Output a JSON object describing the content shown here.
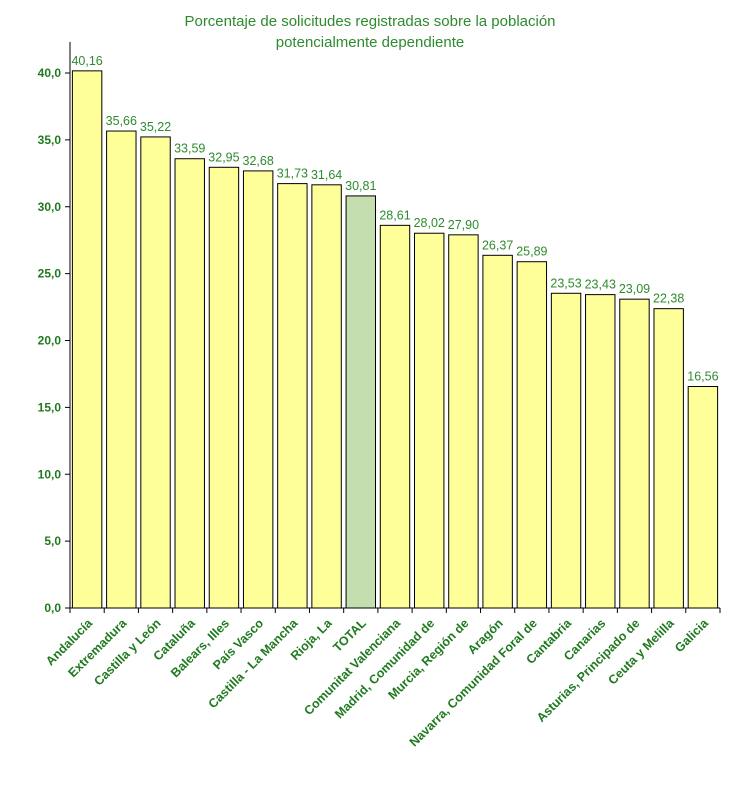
{
  "chart_data": {
    "type": "bar",
    "title_lines": [
      "Porcentaje de solicitudes registradas sobre la población",
      "potencialmente dependiente"
    ],
    "categories": [
      "Andalucía",
      "Extremadura",
      "Castilla y León",
      "Cataluña",
      "Balears, Illes",
      "País Vasco",
      "Castilla - La Mancha",
      "Rioja, La",
      "TOTAL",
      "Comunitat Valenciana",
      "Madrid, Comunidad de",
      "Murcia, Región de",
      "Aragón",
      "Navarra, Comunidad Foral de",
      "Cantabria",
      "Canarias",
      "Asturias, Principado de",
      "Ceuta y Melilla",
      "Galicia"
    ],
    "values": [
      40.16,
      35.66,
      35.22,
      33.59,
      32.95,
      32.68,
      31.73,
      31.64,
      30.81,
      28.61,
      28.02,
      27.9,
      26.37,
      25.89,
      23.53,
      23.43,
      23.09,
      22.38,
      16.56
    ],
    "value_labels": [
      "40,16",
      "35,66",
      "35,22",
      "33,59",
      "32,95",
      "32,68",
      "31,73",
      "31,64",
      "30,81",
      "28,61",
      "28,02",
      "27,90",
      "26,37",
      "25,89",
      "23,53",
      "23,43",
      "23,09",
      "22,38",
      "16,56"
    ],
    "highlight_category": "TOTAL",
    "yticks": [
      0,
      5,
      10,
      15,
      20,
      25,
      30,
      35,
      40
    ],
    "ytick_labels": [
      "0,0",
      "5,0",
      "10,0",
      "15,0",
      "20,0",
      "25,0",
      "30,0",
      "35,0",
      "40,0"
    ],
    "ylim": [
      0,
      40
    ],
    "xlabel": "",
    "ylabel": "",
    "grid": false,
    "legend": "none",
    "colors": {
      "bar": "#ffff99",
      "highlight_bar": "#c4deb0",
      "bar_stroke": "#000000",
      "text": "#1f7a1f",
      "axis": "#000000"
    }
  }
}
